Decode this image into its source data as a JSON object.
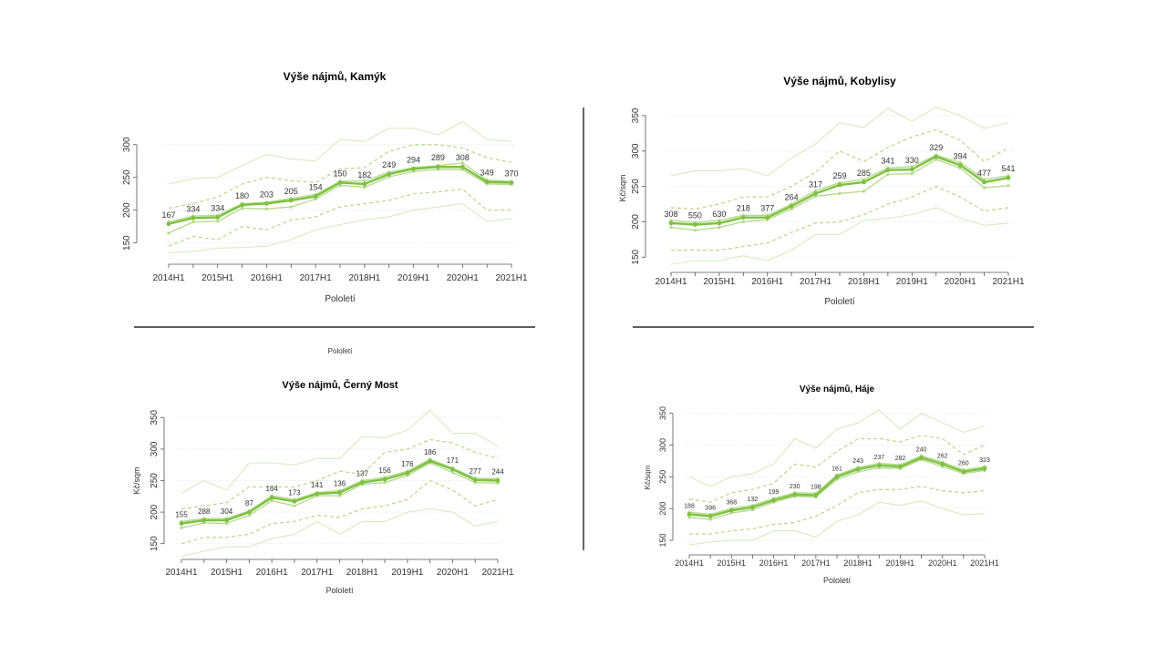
{
  "colors": {
    "main": "#7dc142",
    "band": "#b4d98a",
    "outer": "#d8eac0",
    "rule": "#000000"
  },
  "stray_label": "Pololetí",
  "chart_data": [
    {
      "type": "line",
      "title": "Výše nájmů, Kamýk",
      "xlabel": "Pololetí",
      "ylabel": "",
      "ylim": [
        130,
        340
      ],
      "yticks": [
        150,
        200,
        250,
        300
      ],
      "xtick_labels": [
        "2014H1",
        "2015H1",
        "2016H1",
        "2017H1",
        "2018H1",
        "2019H1",
        "2020H1",
        "2021H1"
      ],
      "x": [
        "2014H1",
        "2014H2",
        "2015H1",
        "2015H2",
        "2016H1",
        "2016H2",
        "2017H1",
        "2017H2",
        "2018H1",
        "2018H2",
        "2019H1",
        "2019H2",
        "2020H1",
        "2020H2",
        "2021H1"
      ],
      "series": [
        {
          "role": "median",
          "values": [
            179,
            188,
            189,
            208,
            210,
            215,
            221,
            242,
            240,
            255,
            263,
            266,
            266,
            243,
            242
          ]
        },
        {
          "role": "low",
          "values": [
            165,
            182,
            183,
            203,
            202,
            205,
            217,
            238,
            235,
            251,
            259,
            262,
            262,
            240,
            239
          ]
        },
        {
          "role": "high",
          "values": [
            182,
            191,
            192,
            210,
            212,
            218,
            224,
            244,
            245,
            258,
            265,
            268,
            272,
            246,
            244
          ]
        },
        {
          "role": "q1",
          "values": [
            145,
            160,
            155,
            175,
            170,
            185,
            190,
            205,
            210,
            215,
            225,
            228,
            232,
            200,
            200
          ]
        },
        {
          "role": "q3",
          "values": [
            203,
            210,
            220,
            240,
            250,
            245,
            242,
            263,
            265,
            290,
            300,
            300,
            295,
            280,
            273
          ]
        },
        {
          "role": "p10",
          "values": [
            135,
            137,
            142,
            143,
            145,
            155,
            170,
            178,
            185,
            190,
            200,
            205,
            210,
            183,
            187
          ]
        },
        {
          "role": "p90",
          "values": [
            240,
            248,
            250,
            268,
            285,
            278,
            275,
            308,
            305,
            325,
            325,
            315,
            335,
            308,
            305
          ]
        }
      ],
      "data_labels": [
        "167",
        "334",
        "334",
        "180",
        "203",
        "205",
        "154",
        "150",
        "182",
        "249",
        "294",
        "289",
        "308",
        "349",
        "370"
      ]
    },
    {
      "type": "line",
      "title": "Výše nájmů, Kobylisy",
      "xlabel": "Pololetí",
      "ylabel": "Kč/sqm",
      "ylim": [
        140,
        355
      ],
      "yticks": [
        150,
        200,
        250,
        300,
        350
      ],
      "xtick_labels": [
        "2014H1",
        "2015H1",
        "2016H1",
        "2017H1",
        "2018H1",
        "2019H1",
        "2020H1",
        "2021H1"
      ],
      "x": [
        "2014H1",
        "2014H2",
        "2015H1",
        "2015H2",
        "2016H1",
        "2016H2",
        "2017H1",
        "2017H2",
        "2018H1",
        "2018H2",
        "2019H1",
        "2019H2",
        "2020H1",
        "2020H2",
        "2021H1"
      ],
      "series": [
        {
          "role": "median",
          "values": [
            198,
            196,
            198,
            206,
            206,
            222,
            240,
            252,
            256,
            273,
            274,
            292,
            280,
            256,
            262
          ]
        },
        {
          "role": "low",
          "values": [
            192,
            188,
            192,
            200,
            203,
            218,
            236,
            240,
            243,
            267,
            268,
            288,
            276,
            248,
            251
          ]
        },
        {
          "role": "high",
          "values": [
            202,
            199,
            202,
            209,
            209,
            225,
            244,
            255,
            260,
            276,
            278,
            294,
            284,
            260,
            265
          ]
        },
        {
          "role": "q1",
          "values": [
            160,
            160,
            160,
            165,
            170,
            185,
            198,
            200,
            210,
            225,
            235,
            250,
            235,
            215,
            220
          ]
        },
        {
          "role": "q3",
          "values": [
            220,
            218,
            225,
            235,
            235,
            250,
            270,
            300,
            285,
            305,
            320,
            330,
            315,
            285,
            305
          ]
        },
        {
          "role": "p10",
          "values": [
            140,
            145,
            145,
            152,
            145,
            160,
            182,
            182,
            202,
            205,
            210,
            220,
            205,
            195,
            198
          ]
        },
        {
          "role": "p90",
          "values": [
            265,
            272,
            272,
            275,
            265,
            290,
            310,
            340,
            333,
            360,
            342,
            362,
            350,
            332,
            340
          ]
        }
      ],
      "data_labels": [
        "308",
        "550",
        "630",
        "218",
        "377",
        "264",
        "317",
        "259",
        "285",
        "341",
        "330",
        "329",
        "394",
        "477",
        "541"
      ]
    },
    {
      "type": "line",
      "title": "Výše nájmů, Černý Most",
      "xlabel": "Pololetí",
      "ylabel": "Kč/sqm",
      "ylim": [
        138,
        362
      ],
      "yticks": [
        150,
        200,
        250,
        300,
        350
      ],
      "xtick_labels": [
        "2014H1",
        "2015H1",
        "2016H1",
        "2017H1",
        "2018H1",
        "2019H1",
        "2020H1",
        "2021H1"
      ],
      "x": [
        "2014H1",
        "2014H2",
        "2015H1",
        "2015H2",
        "2016H1",
        "2016H2",
        "2017H1",
        "2017H2",
        "2018H1",
        "2018H2",
        "2019H1",
        "2019H2",
        "2020H1",
        "2020H2",
        "2021H1"
      ],
      "series": [
        {
          "role": "median",
          "values": [
            182,
            187,
            187,
            200,
            223,
            217,
            229,
            231,
            247,
            252,
            262,
            281,
            268,
            251,
            250
          ]
        },
        {
          "role": "low",
          "values": [
            175,
            183,
            182,
            195,
            218,
            210,
            226,
            226,
            244,
            247,
            258,
            278,
            263,
            247,
            246
          ]
        },
        {
          "role": "high",
          "values": [
            185,
            190,
            190,
            202,
            226,
            220,
            231,
            234,
            250,
            255,
            265,
            284,
            270,
            254,
            253
          ]
        },
        {
          "role": "q1",
          "values": [
            150,
            160,
            160,
            165,
            182,
            185,
            195,
            192,
            205,
            210,
            220,
            250,
            235,
            210,
            220
          ]
        },
        {
          "role": "q3",
          "values": [
            205,
            210,
            215,
            240,
            240,
            240,
            250,
            265,
            260,
            295,
            300,
            315,
            310,
            295,
            285
          ]
        },
        {
          "role": "p10",
          "values": [
            130,
            138,
            145,
            145,
            158,
            165,
            185,
            165,
            185,
            185,
            200,
            205,
            200,
            178,
            185
          ]
        },
        {
          "role": "p90",
          "values": [
            230,
            250,
            235,
            278,
            278,
            275,
            285,
            285,
            320,
            318,
            330,
            362,
            325,
            325,
            305
          ]
        }
      ],
      "data_labels": [
        "155",
        "288",
        "304",
        "87",
        "164",
        "173",
        "141",
        "136",
        "137",
        "156",
        "176",
        "186",
        "171",
        "277",
        "244"
      ]
    },
    {
      "type": "line",
      "title": "Výše nájmů, Háje",
      "xlabel": "Pololetí",
      "ylabel": "Kč/sqm",
      "ylim": [
        140,
        358
      ],
      "yticks": [
        150,
        200,
        250,
        300,
        350
      ],
      "xtick_labels": [
        "2014H1",
        "2015H1",
        "2016H1",
        "2017H1",
        "2018H1",
        "2019H1",
        "2020H1",
        "2021H1"
      ],
      "x": [
        "2014H1",
        "2014H2",
        "2015H1",
        "2015H2",
        "2016H1",
        "2016H2",
        "2017H1",
        "2017H2",
        "2018H1",
        "2018H2",
        "2019H1",
        "2019H2",
        "2020H1",
        "2020H2",
        "2021H1"
      ],
      "series": [
        {
          "role": "median",
          "values": [
            191,
            188,
            197,
            202,
            213,
            222,
            221,
            250,
            262,
            268,
            266,
            280,
            270,
            258,
            263
          ]
        },
        {
          "role": "low",
          "values": [
            186,
            183,
            193,
            198,
            210,
            219,
            218,
            246,
            258,
            264,
            263,
            277,
            266,
            255,
            260
          ]
        },
        {
          "role": "high",
          "values": [
            194,
            191,
            200,
            205,
            216,
            225,
            224,
            253,
            265,
            271,
            269,
            283,
            273,
            261,
            266
          ]
        },
        {
          "role": "q1",
          "values": [
            160,
            160,
            165,
            168,
            175,
            178,
            188,
            205,
            225,
            230,
            230,
            235,
            228,
            225,
            228
          ]
        },
        {
          "role": "q3",
          "values": [
            215,
            210,
            225,
            230,
            240,
            270,
            265,
            290,
            310,
            310,
            305,
            315,
            310,
            285,
            300
          ]
        },
        {
          "role": "p10",
          "values": [
            143,
            147,
            150,
            150,
            165,
            165,
            155,
            180,
            190,
            210,
            205,
            212,
            200,
            190,
            192
          ]
        },
        {
          "role": "p90",
          "values": [
            250,
            235,
            250,
            255,
            270,
            310,
            295,
            325,
            335,
            355,
            325,
            350,
            335,
            320,
            330
          ]
        }
      ],
      "data_labels": [
        "188",
        "396",
        "368",
        "132",
        "199",
        "230",
        "198",
        "161",
        "243",
        "237",
        "282",
        "240",
        "262",
        "260",
        "323"
      ]
    }
  ]
}
